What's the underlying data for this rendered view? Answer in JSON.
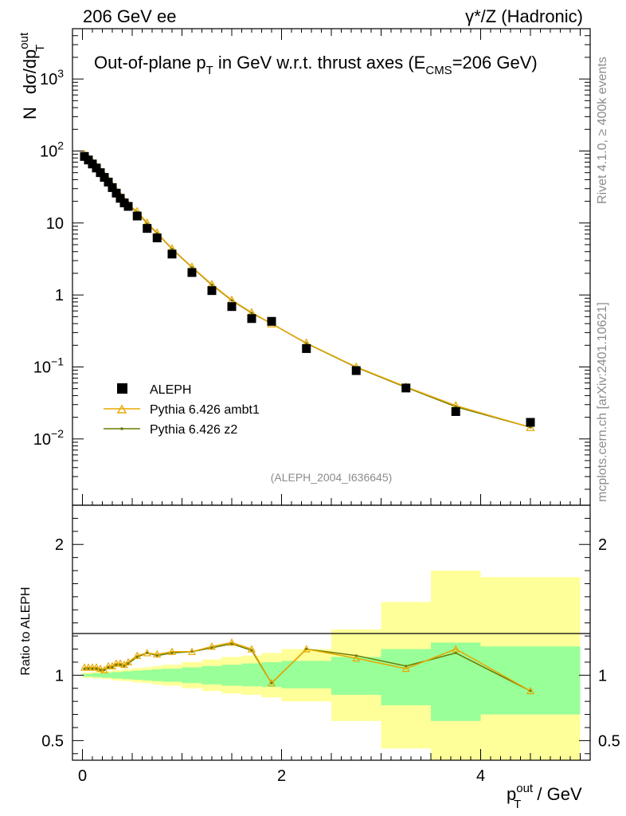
{
  "header": {
    "left": "206 GeV ee",
    "right": "γ*/Z (Hadronic)"
  },
  "side": {
    "rivet": "Rivet 4.1.0, ≥ 400k events",
    "mcplots": "mcplots.cern.ch [arXiv:2401.10621]"
  },
  "title_parts": {
    "a": "Out-of-plane p",
    "a_sub": "T",
    "b": " in GeV w.r.t. thrust axes (E",
    "b_sub": "CMS",
    "c": "=206 GeV)"
  },
  "analysis_id": "(ALEPH_2004_I636645)",
  "ylabel_parts": {
    "n": "N",
    "d": "dσ/dp",
    "sup": "out",
    "sub": "T"
  },
  "xlabel_parts": {
    "p": "p",
    "sup": "out",
    "sub": "T",
    "unit": " / GeV"
  },
  "ratio_ylabel": "Ratio to ALEPH",
  "legend": {
    "data": "ALEPH",
    "mc1": "Pythia 6.426 ambt1",
    "mc2": "Pythia 6.426 z2"
  },
  "colors": {
    "data": "#000000",
    "mc1": "#e8a800",
    "mc2": "#6b7a00",
    "band_inner": "#99ff99",
    "band_outer": "#ffff99"
  },
  "chart_data": {
    "type": "scatter",
    "xlabel": "p_T^out / GeV",
    "ylabel": "N dσ/dp_T^out",
    "xlim": [
      -0.1,
      5.1
    ],
    "ylim_log": [
      0.0012,
      5000
    ],
    "ratio_ylim": [
      0.35,
      2.3
    ],
    "x_ticks": [
      "0",
      "2",
      "4"
    ],
    "y_ticks": [
      "10^-2",
      "10^-1",
      "1",
      "10",
      "10^2",
      "10^3"
    ],
    "ratio_ticks": [
      "0.5",
      "1",
      "2"
    ],
    "series": [
      {
        "name": "ALEPH",
        "x": [
          0.02,
          0.06,
          0.1,
          0.14,
          0.18,
          0.22,
          0.26,
          0.3,
          0.34,
          0.38,
          0.42,
          0.46,
          0.55,
          0.65,
          0.75,
          0.9,
          1.1,
          1.3,
          1.5,
          1.7,
          1.9,
          2.25,
          2.75,
          3.25,
          3.75,
          4.5
        ],
        "values": [
          84,
          75,
          66,
          58,
          50,
          43,
          37,
          31,
          26,
          22,
          19,
          17,
          12.5,
          8.4,
          6.2,
          3.7,
          2.05,
          1.15,
          0.69,
          0.47,
          0.43,
          0.18,
          0.089,
          0.051,
          0.024,
          0.017
        ]
      },
      {
        "name": "Pythia 6.426 ambt1",
        "x": [
          0.02,
          0.06,
          0.1,
          0.14,
          0.18,
          0.22,
          0.26,
          0.3,
          0.34,
          0.38,
          0.42,
          0.46,
          0.55,
          0.65,
          0.75,
          0.9,
          1.1,
          1.3,
          1.5,
          1.7,
          1.9,
          2.25,
          2.75,
          3.25,
          3.75,
          4.5
        ],
        "values": [
          90,
          80,
          70,
          61.5,
          52.5,
          46,
          39.5,
          33,
          28,
          24,
          20.5,
          18,
          14.5,
          10,
          7.3,
          4.4,
          2.45,
          1.4,
          0.85,
          0.57,
          0.4,
          0.215,
          0.1,
          0.053,
          0.029,
          0.0145
        ]
      },
      {
        "name": "Pythia 6.426 z2",
        "x": [
          0.02,
          0.06,
          0.1,
          0.14,
          0.18,
          0.22,
          0.26,
          0.3,
          0.34,
          0.38,
          0.42,
          0.46,
          0.55,
          0.65,
          0.75,
          0.9,
          1.1,
          1.3,
          1.5,
          1.7,
          1.9,
          2.25,
          2.75,
          3.25,
          3.75,
          4.5
        ],
        "values": [
          89,
          79,
          69.5,
          61,
          52,
          45.5,
          39,
          32.5,
          27.5,
          23.5,
          20,
          17.8,
          14.2,
          9.8,
          7.2,
          4.35,
          2.42,
          1.38,
          0.84,
          0.56,
          0.4,
          0.213,
          0.099,
          0.052,
          0.028,
          0.0145
        ]
      }
    ],
    "ratio_series": [
      {
        "name": "Pythia 6.426 ambt1",
        "x": [
          0.02,
          0.06,
          0.1,
          0.14,
          0.18,
          0.22,
          0.26,
          0.3,
          0.34,
          0.38,
          0.42,
          0.46,
          0.55,
          0.65,
          0.75,
          0.9,
          1.1,
          1.3,
          1.5,
          1.7,
          1.9,
          2.25,
          2.75,
          3.25,
          3.75,
          4.5
        ],
        "values": [
          1.06,
          1.06,
          1.06,
          1.06,
          1.05,
          1.04,
          1.07,
          1.07,
          1.09,
          1.09,
          1.08,
          1.1,
          1.15,
          1.17,
          1.16,
          1.18,
          1.18,
          1.22,
          1.25,
          1.2,
          0.94,
          1.2,
          1.13,
          1.05,
          1.2,
          0.88
        ]
      },
      {
        "name": "Pythia 6.426 z2",
        "x": [
          0.02,
          0.06,
          0.1,
          0.14,
          0.18,
          0.22,
          0.26,
          0.3,
          0.34,
          0.38,
          0.42,
          0.46,
          0.55,
          0.65,
          0.75,
          0.9,
          1.1,
          1.3,
          1.5,
          1.7,
          1.9,
          2.25,
          2.75,
          3.25,
          3.75,
          4.5
        ],
        "values": [
          1.05,
          1.05,
          1.05,
          1.05,
          1.04,
          1.04,
          1.06,
          1.06,
          1.08,
          1.08,
          1.07,
          1.09,
          1.14,
          1.17,
          1.15,
          1.17,
          1.18,
          1.21,
          1.24,
          1.19,
          0.94,
          1.2,
          1.15,
          1.07,
          1.17,
          0.88
        ]
      }
    ],
    "uncertainty_bands": {
      "x_edges": [
        0,
        0.1,
        0.2,
        0.3,
        0.4,
        0.5,
        0.6,
        0.7,
        0.8,
        1.0,
        1.2,
        1.4,
        1.6,
        1.8,
        2.0,
        2.5,
        3.0,
        3.5,
        4.0,
        5.0
      ],
      "inner": [
        [
          0.99,
          1.01
        ],
        [
          0.985,
          1.015
        ],
        [
          0.98,
          1.02
        ],
        [
          0.975,
          1.025
        ],
        [
          0.97,
          1.03
        ],
        [
          0.965,
          1.035
        ],
        [
          0.96,
          1.04
        ],
        [
          0.955,
          1.045
        ],
        [
          0.95,
          1.05
        ],
        [
          0.94,
          1.06
        ],
        [
          0.93,
          1.07
        ],
        [
          0.92,
          1.08
        ],
        [
          0.915,
          1.09
        ],
        [
          0.91,
          1.1
        ],
        [
          0.9,
          1.11
        ],
        [
          0.85,
          1.14
        ],
        [
          0.77,
          1.2
        ],
        [
          0.65,
          1.25
        ],
        [
          0.7,
          1.22
        ]
      ],
      "outer": [
        [
          0.98,
          1.02
        ],
        [
          0.975,
          1.025
        ],
        [
          0.97,
          1.03
        ],
        [
          0.96,
          1.04
        ],
        [
          0.955,
          1.045
        ],
        [
          0.945,
          1.055
        ],
        [
          0.94,
          1.06
        ],
        [
          0.93,
          1.07
        ],
        [
          0.92,
          1.08
        ],
        [
          0.9,
          1.1
        ],
        [
          0.88,
          1.12
        ],
        [
          0.86,
          1.14
        ],
        [
          0.85,
          1.15
        ],
        [
          0.83,
          1.17
        ],
        [
          0.8,
          1.2
        ],
        [
          0.65,
          1.35
        ],
        [
          0.44,
          1.56
        ],
        [
          0.3,
          1.8
        ],
        [
          0.3,
          1.75
        ]
      ]
    }
  }
}
